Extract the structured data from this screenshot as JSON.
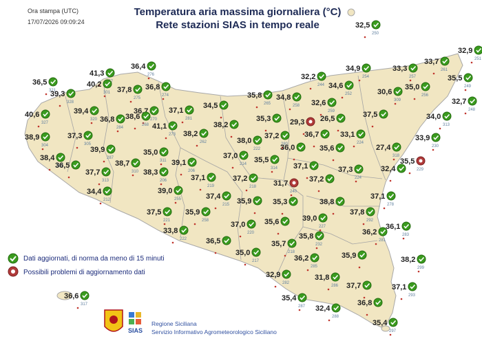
{
  "header": {
    "title_line1": "Temperatura aria massima giornaliera (°C)",
    "title_line2": "Rete stazioni SIAS in tempo reale"
  },
  "stamp": {
    "label": "Ora stampa (UTC)",
    "datetime": "17/07/2026 09:09:24"
  },
  "legend": {
    "ok_label": "Dati aggiornati, di norma da meno di 15 minuti",
    "problem_label": "Possibili problemi di aggiornamento dati"
  },
  "footer": {
    "org_line1": "Regione Siciliana",
    "org_line2": "Servizio Informativo Agrometeorologico Siciliano",
    "logo_text": "SIAS"
  },
  "colors": {
    "land": "#f1e6c2",
    "border": "#a4a4a4",
    "ok_marker": "#3a9b1e",
    "problem_marker": "#b03a3a",
    "dot": "#c0342c"
  },
  "stations": [
    {
      "t": "32,5",
      "id": "250",
      "lx": 516,
      "ly": 40,
      "ok": true
    },
    {
      "t": "32,9",
      "id": "251",
      "lx": 665,
      "ly": 77,
      "ok": true
    },
    {
      "t": "36,4",
      "id": "276",
      "lx": 190,
      "ly": 100,
      "ok": true
    },
    {
      "t": "41,3",
      "id": "277",
      "lx": 130,
      "ly": 110,
      "ok": true
    },
    {
      "t": "36,5",
      "id": "321",
      "lx": 47,
      "ly": 123,
      "ok": true
    },
    {
      "t": "40,2",
      "id": "301",
      "lx": 126,
      "ly": 126,
      "ok": true
    },
    {
      "t": "39,3",
      "id": "328",
      "lx": 73,
      "ly": 140,
      "ok": true
    },
    {
      "t": "37,8",
      "id": "275",
      "lx": 170,
      "ly": 134,
      "ok": true
    },
    {
      "t": "36,8",
      "id": "274",
      "lx": 211,
      "ly": 130,
      "ok": true
    },
    {
      "t": "32,2",
      "id": "244",
      "lx": 437,
      "ly": 115,
      "ok": true
    },
    {
      "t": "34,9",
      "id": "254",
      "lx": 502,
      "ly": 103,
      "ok": true
    },
    {
      "t": "33,3",
      "id": "257",
      "lx": 570,
      "ly": 103,
      "ok": true
    },
    {
      "t": "33,7",
      "id": "261",
      "lx": 616,
      "ly": 93,
      "ok": true
    },
    {
      "t": "34,6",
      "id": "252",
      "lx": 477,
      "ly": 128,
      "ok": true
    },
    {
      "t": "35,5",
      "id": "249",
      "lx": 650,
      "ly": 117,
      "ok": true
    },
    {
      "t": "35,8",
      "id": "265",
      "lx": 359,
      "ly": 142,
      "ok": true
    },
    {
      "t": "34,8",
      "id": "258",
      "lx": 401,
      "ly": 145,
      "ok": true
    },
    {
      "t": "30,6",
      "id": "309",
      "lx": 548,
      "ly": 137,
      "ok": true
    },
    {
      "t": "35,0",
      "id": "256",
      "lx": 588,
      "ly": 130,
      "ok": true
    },
    {
      "t": "32,7",
      "id": "248",
      "lx": 656,
      "ly": 151,
      "ok": true
    },
    {
      "t": "39,4",
      "id": "320",
      "lx": 107,
      "ly": 165,
      "ok": true
    },
    {
      "t": "36,7",
      "id": "270",
      "lx": 194,
      "ly": 165,
      "ok": true
    },
    {
      "t": "37,1",
      "id": "281",
      "lx": 245,
      "ly": 164,
      "ok": true
    },
    {
      "t": "34,5",
      "id": "",
      "lx": 295,
      "ly": 157,
      "ok": true
    },
    {
      "t": "32,6",
      "id": "259",
      "lx": 452,
      "ly": 153,
      "ok": true
    },
    {
      "t": "40,6",
      "id": "327",
      "lx": 36,
      "ly": 170,
      "ok": true
    },
    {
      "t": "36,8",
      "id": "284",
      "lx": 145,
      "ly": 177,
      "ok": true
    },
    {
      "t": "38,6",
      "id": "268",
      "lx": 182,
      "ly": 173,
      "ok": true
    },
    {
      "t": "41,1",
      "id": "273",
      "lx": 221,
      "ly": 187,
      "ok": true
    },
    {
      "t": "38,2",
      "id": "",
      "lx": 310,
      "ly": 185,
      "ok": true
    },
    {
      "t": "35,3",
      "id": "",
      "lx": 372,
      "ly": 176,
      "ok": true
    },
    {
      "t": "29,3",
      "id": "",
      "lx": 421,
      "ly": 181,
      "ok": false
    },
    {
      "t": "26,5",
      "id": "",
      "lx": 465,
      "ly": 176,
      "ok": true
    },
    {
      "t": "37,5",
      "id": "",
      "lx": 527,
      "ly": 170,
      "ok": true
    },
    {
      "t": "34,0",
      "id": "313",
      "lx": 619,
      "ly": 173,
      "ok": true
    },
    {
      "t": "38,9",
      "id": "304",
      "lx": 36,
      "ly": 203,
      "ok": true
    },
    {
      "t": "37,3",
      "id": "305",
      "lx": 98,
      "ly": 201,
      "ok": true
    },
    {
      "t": "38,2",
      "id": "262",
      "lx": 266,
      "ly": 198,
      "ok": true
    },
    {
      "t": "37,2",
      "id": "280",
      "lx": 384,
      "ly": 201,
      "ok": true
    },
    {
      "t": "36,7",
      "id": "",
      "lx": 442,
      "ly": 199,
      "ok": true
    },
    {
      "t": "33,1",
      "id": "224",
      "lx": 494,
      "ly": 199,
      "ok": true
    },
    {
      "t": "33,9",
      "id": "230",
      "lx": 603,
      "ly": 204,
      "ok": true
    },
    {
      "t": "38,0",
      "id": "222",
      "lx": 344,
      "ly": 208,
      "ok": true
    },
    {
      "t": "35,6",
      "id": "",
      "lx": 464,
      "ly": 219,
      "ok": true
    },
    {
      "t": "27,4",
      "id": "318",
      "lx": 546,
      "ly": 218,
      "ok": true
    },
    {
      "t": "38,4",
      "id": "302",
      "lx": 58,
      "ly": 233,
      "ok": true
    },
    {
      "t": "39,9",
      "id": "287",
      "lx": 131,
      "ly": 221,
      "ok": true
    },
    {
      "t": "35,0",
      "id": "311",
      "lx": 208,
      "ly": 225,
      "ok": true
    },
    {
      "t": "37,0",
      "id": "214",
      "lx": 324,
      "ly": 230,
      "ok": true
    },
    {
      "t": "36,0",
      "id": "",
      "lx": 407,
      "ly": 218,
      "ok": true
    },
    {
      "t": "35,5",
      "id": "314",
      "lx": 369,
      "ly": 236,
      "ok": true
    },
    {
      "t": "35,5",
      "id": "229",
      "lx": 581,
      "ly": 238,
      "ok": false
    },
    {
      "t": "36,5",
      "id": "",
      "lx": 80,
      "ly": 244,
      "ok": true
    },
    {
      "t": "38,7",
      "id": "310",
      "lx": 167,
      "ly": 241,
      "ok": true
    },
    {
      "t": "39,1",
      "id": "206",
      "lx": 249,
      "ly": 240,
      "ok": true
    },
    {
      "t": "37,1",
      "id": "",
      "lx": 426,
      "ly": 245,
      "ok": true
    },
    {
      "t": "37,3",
      "id": "224",
      "lx": 491,
      "ly": 250,
      "ok": true
    },
    {
      "t": "32,4",
      "id": "",
      "lx": 553,
      "ly": 249,
      "ok": true
    },
    {
      "t": "37,7",
      "id": "313",
      "lx": 124,
      "ly": 254,
      "ok": true
    },
    {
      "t": "38,3",
      "id": "206",
      "lx": 208,
      "ly": 254,
      "ok": true
    },
    {
      "t": "37,1",
      "id": "219",
      "lx": 277,
      "ly": 262,
      "ok": true
    },
    {
      "t": "37,2",
      "id": "218",
      "lx": 338,
      "ly": 263,
      "ok": true
    },
    {
      "t": "31,7",
      "id": "240",
      "lx": 397,
      "ly": 270,
      "ok": false
    },
    {
      "t": "37,2",
      "id": "",
      "lx": 449,
      "ly": 264,
      "ok": true
    },
    {
      "t": "34,4",
      "id": "212",
      "lx": 126,
      "ly": 282,
      "ok": true
    },
    {
      "t": "39,0",
      "id": "255",
      "lx": 229,
      "ly": 281,
      "ok": true
    },
    {
      "t": "37,4",
      "id": "215",
      "lx": 299,
      "ly": 289,
      "ok": true
    },
    {
      "t": "37,1",
      "id": "278",
      "lx": 538,
      "ly": 289,
      "ok": true
    },
    {
      "t": "35,9",
      "id": "",
      "lx": 344,
      "ly": 296,
      "ok": true
    },
    {
      "t": "35,3",
      "id": "",
      "lx": 396,
      "ly": 297,
      "ok": true
    },
    {
      "t": "38,8",
      "id": "",
      "lx": 464,
      "ly": 297,
      "ok": true
    },
    {
      "t": "37,5",
      "id": "221",
      "lx": 213,
      "ly": 312,
      "ok": true
    },
    {
      "t": "35,9",
      "id": "258",
      "lx": 269,
      "ly": 312,
      "ok": true
    },
    {
      "t": "37,8",
      "id": "292",
      "lx": 508,
      "ly": 312,
      "ok": true
    },
    {
      "t": "39,0",
      "id": "227",
      "lx": 439,
      "ly": 321,
      "ok": true
    },
    {
      "t": "37,0",
      "id": "220",
      "lx": 335,
      "ly": 330,
      "ok": true
    },
    {
      "t": "35,6",
      "id": "",
      "lx": 384,
      "ly": 326,
      "ok": true
    },
    {
      "t": "36,1",
      "id": "283",
      "lx": 560,
      "ly": 333,
      "ok": true
    },
    {
      "t": "33,8",
      "id": "222",
      "lx": 237,
      "ly": 339,
      "ok": true
    },
    {
      "t": "36,2",
      "id": "281",
      "lx": 526,
      "ly": 341,
      "ok": true
    },
    {
      "t": "35,8",
      "id": "232",
      "lx": 434,
      "ly": 347,
      "ok": true
    },
    {
      "t": "36,5",
      "id": "",
      "lx": 299,
      "ly": 354,
      "ok": true
    },
    {
      "t": "35,7",
      "id": "218",
      "lx": 394,
      "ly": 358,
      "ok": true
    },
    {
      "t": "35,9",
      "id": "",
      "lx": 496,
      "ly": 375,
      "ok": true
    },
    {
      "t": "35,0",
      "id": "217",
      "lx": 342,
      "ly": 371,
      "ok": true
    },
    {
      "t": "36,2",
      "id": "285",
      "lx": 427,
      "ly": 379,
      "ok": true
    },
    {
      "t": "38,2",
      "id": "299",
      "lx": 582,
      "ly": 381,
      "ok": true
    },
    {
      "t": "32,9",
      "id": "282",
      "lx": 386,
      "ly": 403,
      "ok": true
    },
    {
      "t": "31,8",
      "id": "286",
      "lx": 457,
      "ly": 407,
      "ok": true
    },
    {
      "t": "37,7",
      "id": "",
      "lx": 503,
      "ly": 419,
      "ok": true
    },
    {
      "t": "37,1",
      "id": "293",
      "lx": 569,
      "ly": 421,
      "ok": true
    },
    {
      "t": "36,6",
      "id": "317",
      "lx": 93,
      "ly": 434,
      "ok": true
    },
    {
      "t": "35,4",
      "id": "287",
      "lx": 409,
      "ly": 437,
      "ok": true
    },
    {
      "t": "36,8",
      "id": "",
      "lx": 519,
      "ly": 444,
      "ok": true
    },
    {
      "t": "32,4",
      "id": "288",
      "lx": 458,
      "ly": 452,
      "ok": true
    },
    {
      "t": "35,4",
      "id": "297",
      "lx": 541,
      "ly": 473,
      "ok": true
    }
  ]
}
